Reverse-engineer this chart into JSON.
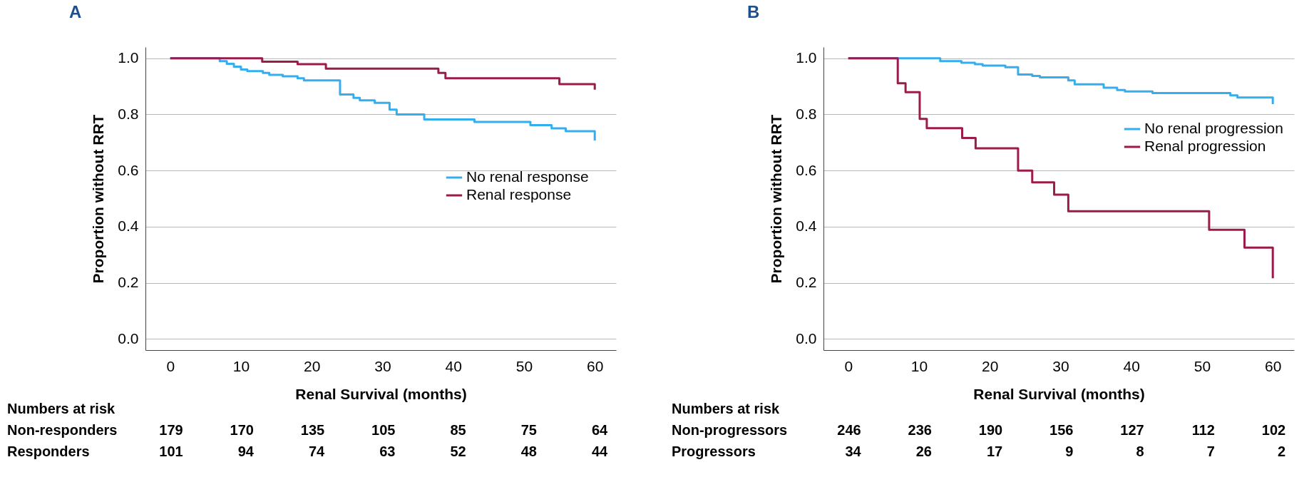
{
  "chart_data": [
    {
      "type": "step",
      "title": "A",
      "xlabel": "Renal Survival (months)",
      "ylabel": "Proportion without RRT",
      "xlim": [
        -3.5,
        63
      ],
      "ylim": [
        -0.04,
        1.04
      ],
      "xticks": [
        0,
        10,
        20,
        30,
        40,
        50,
        60
      ],
      "yticks": [
        {
          "value": 0,
          "label": "0.0"
        },
        {
          "value": 0.2,
          "label": "0.2"
        },
        {
          "value": 0.4,
          "label": "0.4"
        },
        {
          "value": 0.6,
          "label": "0.6"
        },
        {
          "value": 0.8,
          "label": "0.8"
        },
        {
          "value": 1,
          "label": "1.0"
        }
      ],
      "grid": "y",
      "legend": "right",
      "line_style": "solid",
      "marker": "none",
      "series": [
        {
          "name": "No renal response",
          "color": "#35aef0",
          "x": [
            0,
            7,
            8,
            9,
            10.0,
            10.9,
            13.1,
            14.0,
            15.9,
            18.0,
            18.9,
            24.0,
            25.9,
            26.8,
            28.9,
            31.0,
            32.0,
            35.9,
            43.0,
            50.9,
            53.9,
            55.9,
            60,
            60
          ],
          "values": [
            1,
            0.99,
            0.98,
            0.97,
            0.96,
            0.954,
            0.948,
            0.941,
            0.936,
            0.929,
            0.921,
            0.871,
            0.859,
            0.85,
            0.841,
            0.817,
            0.8,
            0.782,
            0.773,
            0.762,
            0.75,
            0.74,
            0.74,
            0.707
          ]
        },
        {
          "name": "Renal response",
          "color": "#9b1b4b",
          "x": [
            0,
            13,
            18,
            22,
            37.9,
            38.9,
            55.0,
            60,
            60
          ],
          "values": [
            1,
            0.988,
            0.979,
            0.963,
            0.948,
            0.929,
            0.908,
            0.908,
            0.888
          ]
        }
      ],
      "annotations": [
        "Numbers at risk",
        "Non-responders 179 170 135 105 85 75 64",
        "Responders 101 94 74 63 52 48 44"
      ]
    },
    {
      "type": "step",
      "title": "B",
      "xlabel": "Renal Survival (months)",
      "ylabel": "Proportion without RRT",
      "xlim": [
        -3.5,
        63
      ],
      "ylim": [
        -0.04,
        1.04
      ],
      "xticks": [
        0,
        10,
        20,
        30,
        40,
        50,
        60
      ],
      "yticks": [
        {
          "value": 0,
          "label": "0.0"
        },
        {
          "value": 0.2,
          "label": "0.2"
        },
        {
          "value": 0.4,
          "label": "0.4"
        },
        {
          "value": 0.6,
          "label": "0.6"
        },
        {
          "value": 0.8,
          "label": "0.8"
        },
        {
          "value": 1,
          "label": "1.0"
        }
      ],
      "grid": "y",
      "legend": "top right",
      "line_style": "solid",
      "marker": "none",
      "series": [
        {
          "name": "No renal progression",
          "color": "#35aef0",
          "x": [
            0,
            13,
            16,
            17.9,
            19.0,
            22.2,
            24.0,
            26.0,
            27.1,
            31.1,
            32.0,
            36.1,
            38.0,
            39.1,
            43.0,
            54.0,
            55.0,
            60,
            60
          ],
          "values": [
            1,
            0.99,
            0.984,
            0.979,
            0.974,
            0.968,
            0.942,
            0.937,
            0.932,
            0.921,
            0.907,
            0.895,
            0.887,
            0.882,
            0.876,
            0.868,
            0.86,
            0.86,
            0.837
          ]
        },
        {
          "name": "Renal progression",
          "color": "#9b1b4b",
          "x": [
            0,
            7,
            8.1,
            10.1,
            11.1,
            16.1,
            18.0,
            24.0,
            26.0,
            29.1,
            31.1,
            51.0,
            56.0,
            60,
            60
          ],
          "values": [
            1,
            0.911,
            0.879,
            0.784,
            0.751,
            0.716,
            0.679,
            0.6,
            0.558,
            0.514,
            0.455,
            0.389,
            0.325,
            0.325,
            0.216
          ]
        }
      ],
      "annotations": [
        "Numbers at risk",
        "Non-progressors 246 236 190 156 127 112 102",
        "Progressors 34 26 17 9 8 7 2"
      ]
    }
  ]
}
